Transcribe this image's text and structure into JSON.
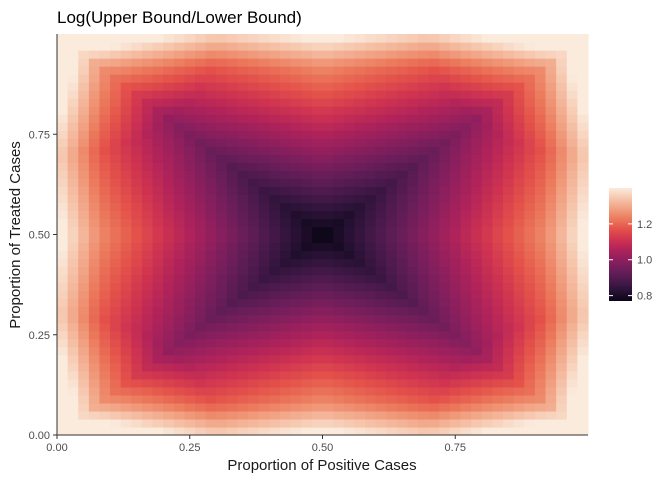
{
  "chart_data": {
    "type": "heatmap",
    "title": "Log(Upper Bound/Lower Bound)",
    "xlabel": "Proportion of Positive Cases",
    "ylabel": "Proportion of Treated Cases",
    "xlim": [
      0,
      1
    ],
    "ylim": [
      0,
      1
    ],
    "x_ticks": [
      "0.00",
      "0.25",
      "0.50",
      "0.75"
    ],
    "y_ticks": [
      "0.00",
      "0.25",
      "0.50",
      "0.75"
    ],
    "x_tick_values": [
      0,
      0.25,
      0.5,
      0.75
    ],
    "y_tick_values": [
      0,
      0.25,
      0.5,
      0.75
    ],
    "grid": 50,
    "surface": {
      "description_of_values": "value at (x, y) with d = max(|x-0.5|,|y-0.5|), s = min(|x-0.5|,|y-0.5|)",
      "center_value": 0.77,
      "box_slope": 0.7,
      "diag_slope": 0.55,
      "corner_min_at_edges": 1.25,
      "edge_mid_value": 1.2
    },
    "legend": {
      "position": "right",
      "min": 0.77,
      "max": 1.4,
      "ticks": [
        "0.8",
        "1.0",
        "1.2"
      ],
      "tick_values": [
        0.8,
        1.0,
        1.2
      ]
    },
    "colormap": [
      "#0b0617",
      "#2a1236",
      "#4a1a4d",
      "#6b1e5a",
      "#8e1f5e",
      "#b0235a",
      "#cf3350",
      "#e4524a",
      "#ec7a5c",
      "#f1a182",
      "#f6c6ad",
      "#faebdd"
    ]
  }
}
